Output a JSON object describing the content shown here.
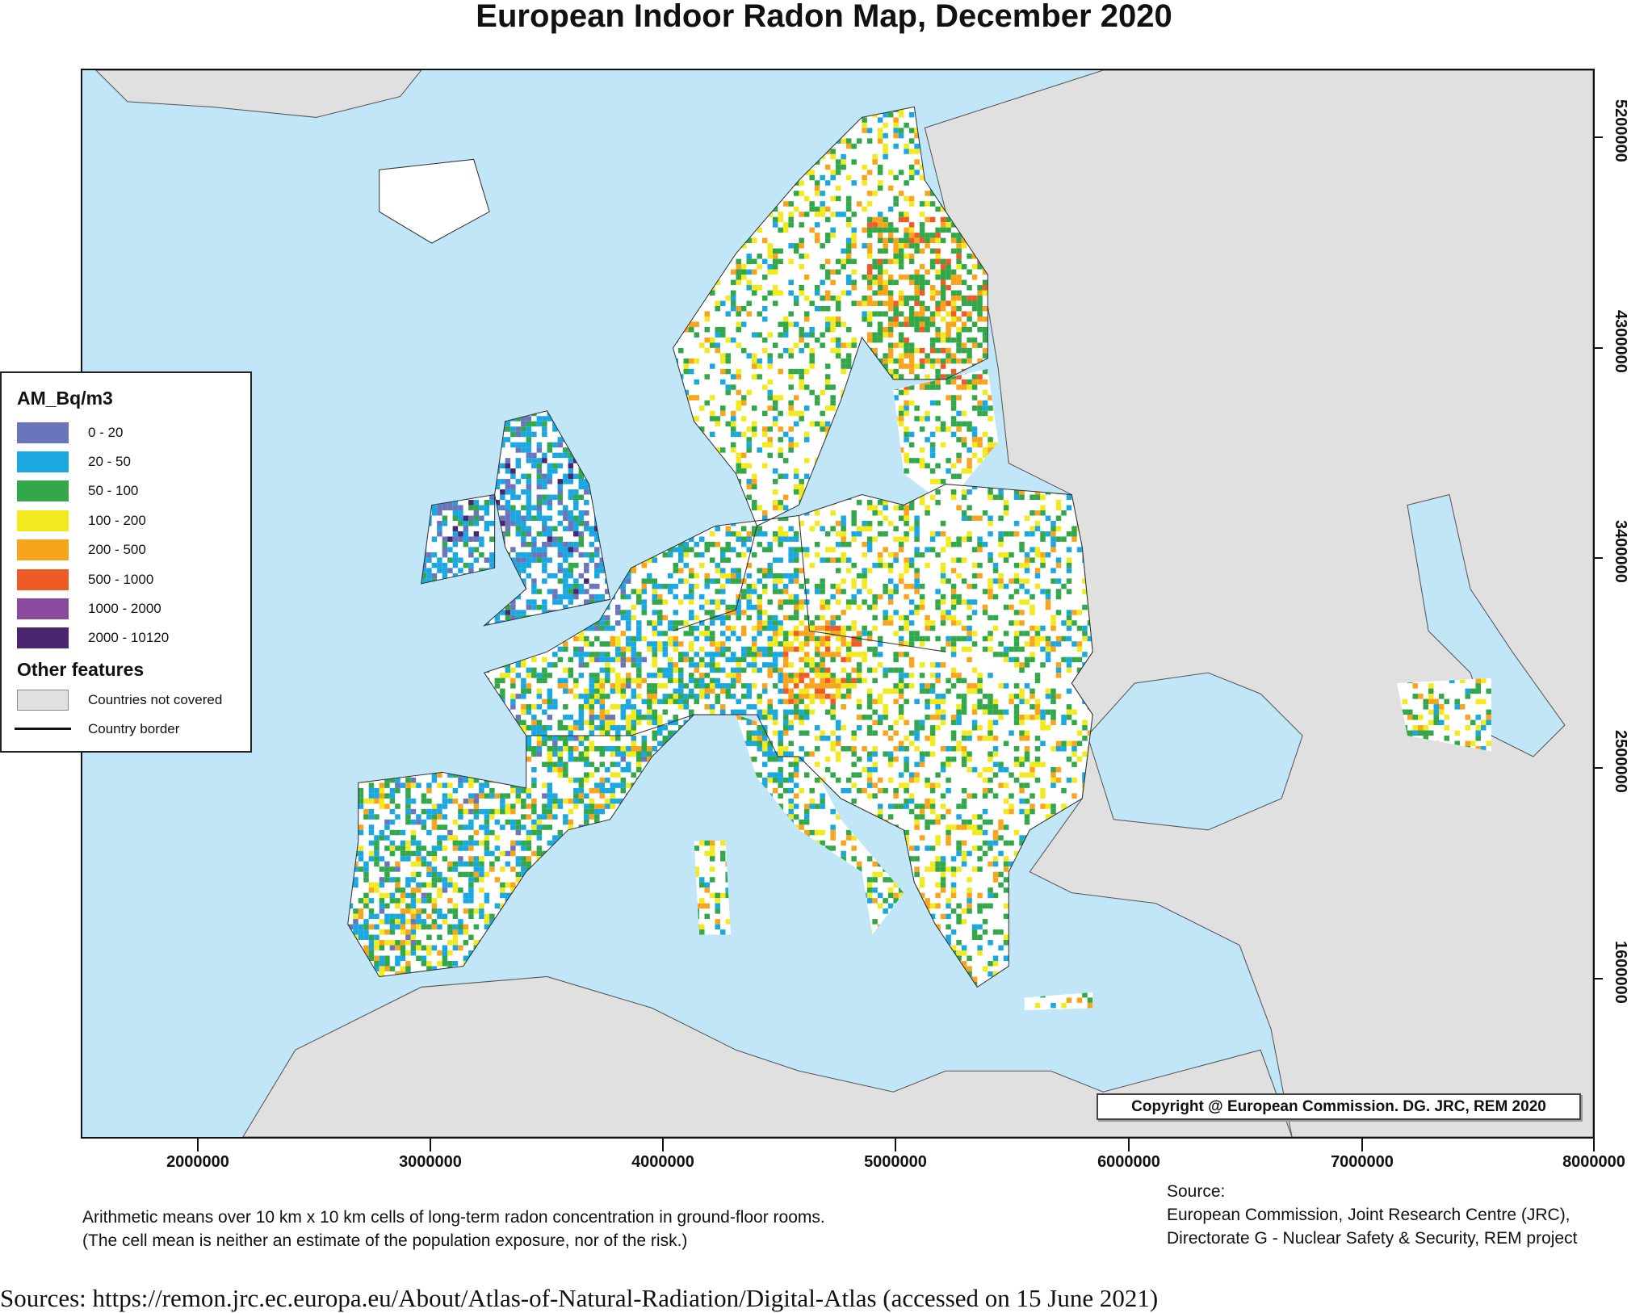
{
  "title": "European Indoor Radon Map, December 2020",
  "colors": {
    "sea": "#c0e6f8",
    "not_covered": "#e0e0e0",
    "covered_no_data": "#ffffff"
  },
  "axes": {
    "x_ticks": [
      "2000000",
      "3000000",
      "4000000",
      "5000000",
      "6000000",
      "7000000",
      "8000000"
    ],
    "y_ticks": [
      "5200000",
      "4300000",
      "3400000",
      "2500000",
      "1600000"
    ]
  },
  "legend": {
    "title": "AM_Bq/m3",
    "classes": [
      {
        "label": "0 - 20",
        "color": "#6a75bb"
      },
      {
        "label": "20 - 50",
        "color": "#1ba8e0"
      },
      {
        "label": "50 - 100",
        "color": "#32a84a"
      },
      {
        "label": "100 - 200",
        "color": "#f2ea1e"
      },
      {
        "label": "200 - 500",
        "color": "#f8a51d"
      },
      {
        "label": "500 - 1000",
        "color": "#f05a26"
      },
      {
        "label": "1000 - 2000",
        "color": "#8a4b9e"
      },
      {
        "label": "2000 - 10120",
        "color": "#4a2570"
      }
    ],
    "other_title": "Other features",
    "not_covered_label": "Countries not covered",
    "border_label": "Country border"
  },
  "copyright": "Copyright @ European Commission. DG. JRC, REM 2020",
  "caption": {
    "line1": "Arithmetic means over 10 km x 10 km cells of long-term radon concentration in ground-floor rooms.",
    "line2": "(The cell mean is neither an estimate of the population exposure, nor of the risk.)"
  },
  "source": {
    "label": "Source:",
    "line1": "European Commission, Joint Research Centre (JRC),",
    "line2": "Directorate G - Nuclear Safety & Security, REM project"
  },
  "sources_footer": "Sources: https://remon.jrc.ec.europa.eu/About/Atlas-of-Natural-Radiation/Digital-Atlas (accessed on 15 June 2021)"
}
